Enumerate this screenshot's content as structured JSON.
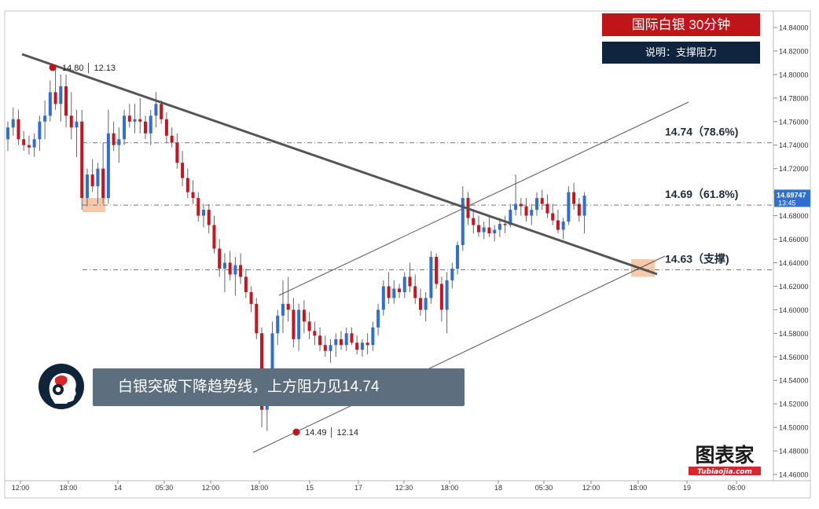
{
  "header": {
    "title": "国际白银  30分钟",
    "subtitle": "说明：支撑阻力"
  },
  "note": {
    "text": "白银突破下降趋势线，上方阻力见14.74"
  },
  "watermark": {
    "text": "图表家",
    "url_text": "Tubiaojia.com"
  },
  "colors": {
    "bull": "#2e6fd0",
    "bear": "#c8141e",
    "title_bg": "#c0141b",
    "subtitle_bg": "#10243f",
    "note_bg": "#5d6e7e",
    "price_tag_bg": "#2e6fd0",
    "zone": "#f6c9a8"
  },
  "chart_data": {
    "type": "candlestick",
    "y_ticks": [
      "14.84000",
      "14.82000",
      "14.80000",
      "14.78000",
      "14.76000",
      "14.74000",
      "14.72000",
      "14.70000",
      "14.68000",
      "14.66000",
      "14.64000",
      "14.62000",
      "14.60000",
      "14.58000",
      "14.56000",
      "14.54000",
      "14.52000",
      "14.50000",
      "14.48000",
      "14.46000"
    ],
    "ylim": [
      14.453,
      14.856
    ],
    "x_ticks": [
      "12:00",
      "18:00",
      "14",
      "05:30",
      "12:00",
      "18:00",
      "15",
      "17",
      "12:30",
      "18:00",
      "18",
      "05:30",
      "12:00",
      "18:00",
      "19",
      "06:00"
    ],
    "last_price": "14.69747",
    "countdown": "13:45",
    "levels": [
      {
        "label": "14.74（78.6%)",
        "price": 14.742
      },
      {
        "label": "14.69（61.8%)",
        "price": 14.689
      },
      {
        "label": "14.63（支撑)",
        "price": 14.634
      }
    ],
    "annotations": [
      {
        "label": "14.80 │ 12.13",
        "price": 14.806
      },
      {
        "label": "14.49 │ 12.14",
        "price": 14.496
      }
    ],
    "candles": [
      [
        14.745,
        14.76,
        14.735,
        14.755
      ],
      [
        14.755,
        14.772,
        14.748,
        14.762
      ],
      [
        14.762,
        14.77,
        14.74,
        14.745
      ],
      [
        14.745,
        14.752,
        14.735,
        14.74
      ],
      [
        14.74,
        14.748,
        14.732,
        14.738
      ],
      [
        14.738,
        14.75,
        14.73,
        14.745
      ],
      [
        14.745,
        14.765,
        14.735,
        14.76
      ],
      [
        14.76,
        14.778,
        14.745,
        14.765
      ],
      [
        14.765,
        14.795,
        14.76,
        14.785
      ],
      [
        14.785,
        14.805,
        14.77,
        14.775
      ],
      [
        14.775,
        14.8,
        14.76,
        14.79
      ],
      [
        14.79,
        14.8,
        14.755,
        14.765
      ],
      [
        14.765,
        14.785,
        14.745,
        14.755
      ],
      [
        14.755,
        14.77,
        14.73,
        14.76
      ],
      [
        14.76,
        14.77,
        14.685,
        14.695
      ],
      [
        14.695,
        14.72,
        14.688,
        14.715
      ],
      [
        14.715,
        14.728,
        14.7,
        14.705
      ],
      [
        14.705,
        14.725,
        14.69,
        14.72
      ],
      [
        14.72,
        14.742,
        14.69,
        14.695
      ],
      [
        14.695,
        14.77,
        14.69,
        14.75
      ],
      [
        14.75,
        14.76,
        14.735,
        14.74
      ],
      [
        14.74,
        14.755,
        14.725,
        14.745
      ],
      [
        14.745,
        14.77,
        14.74,
        14.765
      ],
      [
        14.765,
        14.775,
        14.755,
        14.76
      ],
      [
        14.76,
        14.775,
        14.75,
        14.762
      ],
      [
        14.762,
        14.78,
        14.75,
        14.76
      ],
      [
        14.76,
        14.765,
        14.745,
        14.75
      ],
      [
        14.75,
        14.77,
        14.74,
        14.765
      ],
      [
        14.765,
        14.785,
        14.755,
        14.775
      ],
      [
        14.775,
        14.778,
        14.758,
        14.762
      ],
      [
        14.762,
        14.768,
        14.742,
        14.748
      ],
      [
        14.748,
        14.755,
        14.738,
        14.742
      ],
      [
        14.742,
        14.75,
        14.72,
        14.725
      ],
      [
        14.725,
        14.735,
        14.705,
        14.712
      ],
      [
        14.712,
        14.72,
        14.695,
        14.7
      ],
      [
        14.7,
        14.71,
        14.69,
        14.695
      ],
      [
        14.695,
        14.7,
        14.675,
        14.68
      ],
      [
        14.68,
        14.69,
        14.67,
        14.685
      ],
      [
        14.685,
        14.69,
        14.665,
        14.672
      ],
      [
        14.672,
        14.68,
        14.648,
        14.652
      ],
      [
        14.652,
        14.66,
        14.628,
        14.635
      ],
      [
        14.635,
        14.648,
        14.615,
        14.64
      ],
      [
        14.64,
        14.65,
        14.625,
        14.63
      ],
      [
        14.63,
        14.645,
        14.612,
        14.638
      ],
      [
        14.638,
        14.648,
        14.622,
        14.628
      ],
      [
        14.628,
        14.635,
        14.61,
        14.615
      ],
      [
        14.615,
        14.62,
        14.598,
        14.605
      ],
      [
        14.605,
        14.61,
        14.575,
        14.58
      ],
      [
        14.58,
        14.585,
        14.5,
        14.515
      ],
      [
        14.515,
        14.55,
        14.497,
        14.545
      ],
      [
        14.545,
        14.59,
        14.52,
        14.58
      ],
      [
        14.58,
        14.6,
        14.57,
        14.595
      ],
      [
        14.595,
        14.625,
        14.58,
        14.605
      ],
      [
        14.605,
        14.628,
        14.59,
        14.6
      ],
      [
        14.6,
        14.61,
        14.568,
        14.575
      ],
      [
        14.575,
        14.605,
        14.565,
        14.6
      ],
      [
        14.6,
        14.608,
        14.58,
        14.59
      ],
      [
        14.59,
        14.598,
        14.575,
        14.582
      ],
      [
        14.582,
        14.59,
        14.57,
        14.578
      ],
      [
        14.578,
        14.585,
        14.565,
        14.57
      ],
      [
        14.57,
        14.578,
        14.56,
        14.565
      ],
      [
        14.565,
        14.575,
        14.555,
        14.57
      ],
      [
        14.57,
        14.58,
        14.56,
        14.575
      ],
      [
        14.575,
        14.582,
        14.566,
        14.57
      ],
      [
        14.57,
        14.585,
        14.565,
        14.58
      ],
      [
        14.58,
        14.585,
        14.57,
        14.572
      ],
      [
        14.572,
        14.578,
        14.562,
        14.566
      ],
      [
        14.566,
        14.575,
        14.56,
        14.572
      ],
      [
        14.572,
        14.58,
        14.562,
        14.57
      ],
      [
        14.57,
        14.59,
        14.565,
        14.585
      ],
      [
        14.585,
        14.605,
        14.578,
        14.6
      ],
      [
        14.6,
        14.625,
        14.595,
        14.62
      ],
      [
        14.62,
        14.632,
        14.605,
        14.61
      ],
      [
        14.61,
        14.625,
        14.605,
        14.618
      ],
      [
        14.618,
        14.622,
        14.61,
        14.615
      ],
      [
        14.615,
        14.632,
        14.61,
        14.628
      ],
      [
        14.628,
        14.64,
        14.615,
        14.62
      ],
      [
        14.62,
        14.63,
        14.605,
        14.61
      ],
      [
        14.61,
        14.618,
        14.595,
        14.6
      ],
      [
        14.6,
        14.615,
        14.59,
        14.61
      ],
      [
        14.61,
        14.65,
        14.605,
        14.645
      ],
      [
        14.645,
        14.648,
        14.618,
        14.622
      ],
      [
        14.622,
        14.628,
        14.59,
        14.6
      ],
      [
        14.6,
        14.632,
        14.58,
        14.625
      ],
      [
        14.625,
        14.64,
        14.618,
        14.635
      ],
      [
        14.635,
        14.658,
        14.63,
        14.655
      ],
      [
        14.655,
        14.705,
        14.65,
        14.695
      ],
      [
        14.695,
        14.7,
        14.672,
        14.678
      ],
      [
        14.678,
        14.685,
        14.665,
        14.672
      ],
      [
        14.672,
        14.68,
        14.662,
        14.666
      ],
      [
        14.666,
        14.675,
        14.66,
        14.67
      ],
      [
        14.67,
        14.68,
        14.662,
        14.665
      ],
      [
        14.665,
        14.672,
        14.658,
        14.668
      ],
      [
        14.668,
        14.678,
        14.662,
        14.673
      ],
      [
        14.673,
        14.68,
        14.665,
        14.672
      ],
      [
        14.672,
        14.69,
        14.67,
        14.685
      ],
      [
        14.685,
        14.715,
        14.68,
        14.69
      ],
      [
        14.69,
        14.695,
        14.68,
        14.688
      ],
      [
        14.688,
        14.695,
        14.675,
        14.68
      ],
      [
        14.68,
        14.69,
        14.672,
        14.685
      ],
      [
        14.685,
        14.7,
        14.68,
        14.695
      ],
      [
        14.695,
        14.702,
        14.685,
        14.69
      ],
      [
        14.69,
        14.698,
        14.678,
        14.682
      ],
      [
        14.682,
        14.69,
        14.672,
        14.676
      ],
      [
        14.676,
        14.685,
        14.665,
        14.668
      ],
      [
        14.668,
        14.678,
        14.66,
        14.675
      ],
      [
        14.675,
        14.705,
        14.672,
        14.7
      ],
      [
        14.7,
        14.708,
        14.685,
        14.69
      ],
      [
        14.69,
        14.695,
        14.675,
        14.68
      ],
      [
        14.68,
        14.7,
        14.665,
        14.697
      ]
    ]
  }
}
